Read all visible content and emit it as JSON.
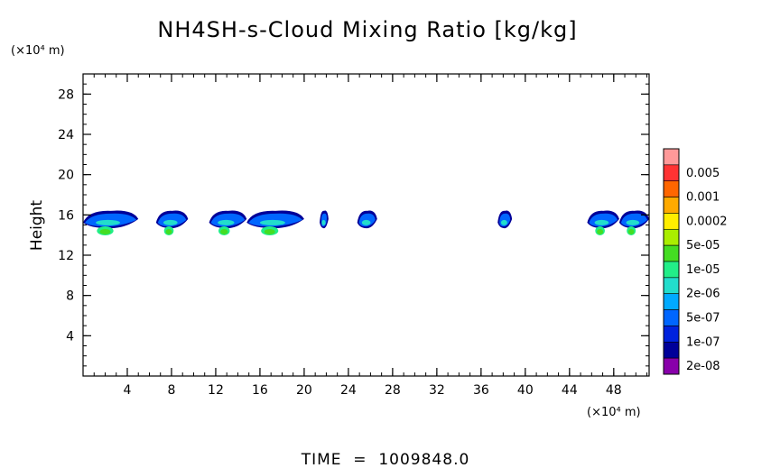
{
  "chart_data": {
    "type": "heatmap",
    "title": "NH4SH-s-Cloud Mixing Ratio [kg/kg]",
    "xlabel": "",
    "ylabel": "Height",
    "x_unit": "(×10⁴ m)",
    "y_unit": "(×10⁴ m)",
    "xlim": [
      0,
      51.2
    ],
    "ylim": [
      0,
      30
    ],
    "x_ticks": [
      4,
      8,
      12,
      16,
      20,
      24,
      28,
      32,
      36,
      40,
      44,
      48
    ],
    "y_ticks": [
      4,
      8,
      12,
      16,
      20,
      24,
      28
    ],
    "grid": false,
    "colorbar": {
      "position": "right",
      "levels": [
        "0.005",
        "0.001",
        "0.0002",
        "5e-05",
        "1e-05",
        "2e-06",
        "5e-07",
        "1e-07",
        "2e-08"
      ],
      "colors": [
        "#ff9999",
        "#ff3333",
        "#ff6600",
        "#ffaa00",
        "#ffee00",
        "#aaee00",
        "#44dd22",
        "#22ee88",
        "#22ddcc",
        "#00aaff",
        "#0066ff",
        "#0022dd",
        "#000099",
        "#8800aa"
      ]
    },
    "cloud_layer": {
      "height_range": [
        14.6,
        16.4
      ],
      "x_segments": [
        [
          0,
          5
        ],
        [
          6.6,
          9.5
        ],
        [
          11.4,
          14.8
        ],
        [
          14.8,
          20
        ],
        [
          21.4,
          22.2
        ],
        [
          24.8,
          26.6
        ],
        [
          37.5,
          38.8
        ],
        [
          45.6,
          48.5
        ],
        [
          48.5,
          51.2
        ]
      ]
    },
    "footer": "TIME  =  1009848.0"
  }
}
